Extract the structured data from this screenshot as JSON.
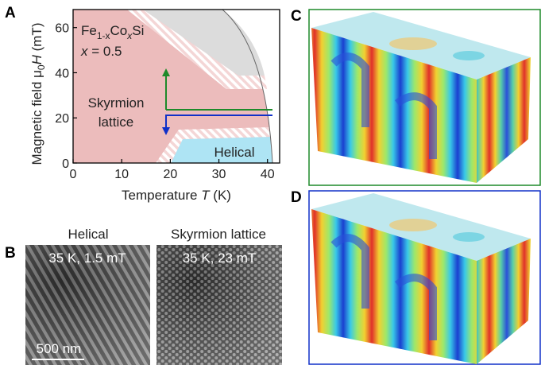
{
  "panel_a": {
    "label": "A",
    "formula": [
      "Fe",
      "1-x",
      "Co",
      "x",
      "Si"
    ],
    "composition": [
      "x",
      " = 0.5"
    ],
    "region_skyrmion": [
      "Skyrmion",
      "lattice"
    ],
    "region_helical": "Helical",
    "x_axis": {
      "parts": [
        "Temperature ",
        "T",
        " (K)"
      ],
      "lim": [
        0,
        42.5
      ],
      "ticks": [
        0,
        10,
        20,
        30,
        40
      ]
    },
    "y_axis": {
      "parts": [
        "Magnetic field ",
        "μ",
        "0",
        "H",
        " (mT)"
      ],
      "lim": [
        0,
        68
      ],
      "ticks": [
        0,
        20,
        40,
        60
      ]
    }
  },
  "panel_b": {
    "label": "B",
    "images": [
      {
        "title": "Helical",
        "conditions": "35 K, 1.5 mT"
      },
      {
        "title": "Skyrmion lattice",
        "conditions": "35 K, 23 mT"
      }
    ],
    "scale_bar": "500 nm"
  },
  "panel_c": {
    "label": "C"
  },
  "panel_d": {
    "label": "D"
  }
}
